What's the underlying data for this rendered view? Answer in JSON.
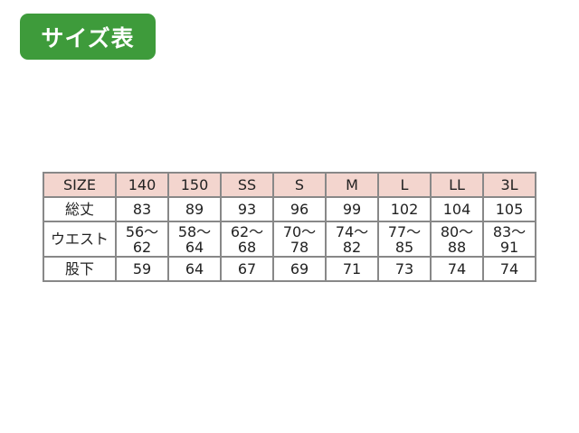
{
  "title": "サイズ表",
  "colors": {
    "badge": "#3e9b3b",
    "header": "#f3d5ce"
  },
  "table": {
    "header": [
      "SIZE",
      "140",
      "150",
      "SS",
      "S",
      "M",
      "L",
      "LL",
      "3L"
    ],
    "rows": [
      [
        "総丈",
        "83",
        "89",
        "93",
        "96",
        "99",
        "102",
        "104",
        "105"
      ],
      [
        "ウエスト",
        "56〜\n62",
        "58〜\n64",
        "62〜\n68",
        "70〜\n78",
        "74〜\n82",
        "77〜\n85",
        "80〜\n88",
        "83〜\n91"
      ],
      [
        "股下",
        "59",
        "64",
        "67",
        "69",
        "71",
        "73",
        "74",
        "74"
      ]
    ]
  }
}
